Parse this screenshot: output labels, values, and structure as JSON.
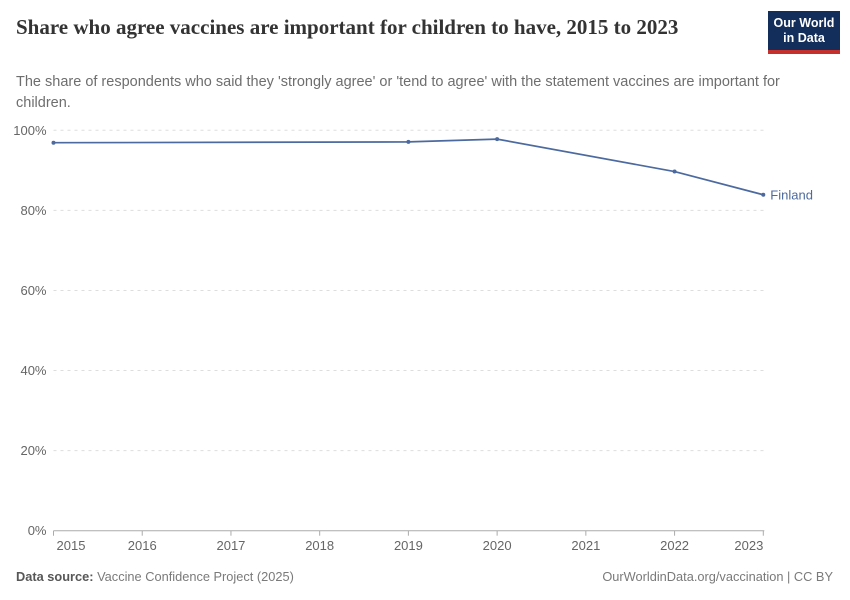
{
  "header": {
    "title": "Share who agree vaccines are important for children to have, 2015 to 2023",
    "subtitle": "The share of respondents who said they 'strongly agree' or 'tend to agree' with the statement vaccines are important for children.",
    "logo": {
      "line1": "Our World",
      "line2": "in Data",
      "bg_color": "#132E5B",
      "accent_color": "#C6302C"
    }
  },
  "chart_data": {
    "type": "line",
    "title": "Share who agree vaccines are important for children to have, 2015 to 2023",
    "x": [
      2015,
      2019,
      2020,
      2022,
      2023
    ],
    "series": [
      {
        "name": "Finland",
        "color": "#4C6A9F",
        "values": [
          96.9,
          97.1,
          97.8,
          89.7,
          83.9
        ]
      }
    ],
    "xlim": [
      2015,
      2023
    ],
    "ylim": [
      0,
      100
    ],
    "xticks": [
      2015,
      2016,
      2017,
      2018,
      2019,
      2020,
      2021,
      2022,
      2023
    ],
    "yticks": [
      0,
      20,
      40,
      60,
      80,
      100
    ],
    "ytick_suffix": "%",
    "grid": "horizontal-dashed",
    "legend_position": "end-of-line-label",
    "markers": true
  },
  "footer": {
    "datasource_label": "Data source:",
    "datasource_value": " Vaccine Confidence Project (2025)",
    "credit": "OurWorldinData.org/vaccination | CC BY"
  }
}
